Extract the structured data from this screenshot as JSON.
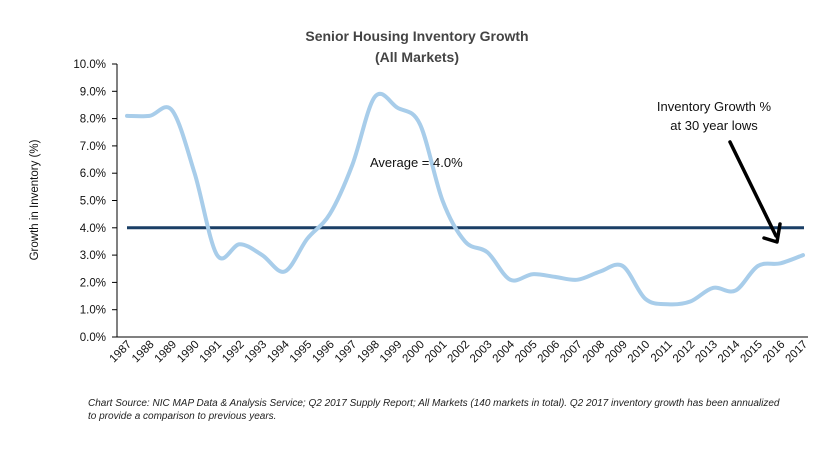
{
  "chart_data": {
    "type": "line",
    "title": "Senior Housing Inventory Growth",
    "subtitle": "(All Markets)",
    "ylabel": "Growth in Inventory (%)",
    "xlabel": "",
    "ylim": [
      0,
      10
    ],
    "y_ticks": [
      "0.0%",
      "1.0%",
      "2.0%",
      "3.0%",
      "4.0%",
      "5.0%",
      "6.0%",
      "7.0%",
      "8.0%",
      "9.0%",
      "10.0%"
    ],
    "categories": [
      "1987",
      "1988",
      "1989",
      "1990",
      "1991",
      "1992",
      "1993",
      "1994",
      "1995",
      "1996",
      "1997",
      "1998",
      "1999",
      "2000",
      "2001",
      "2002",
      "2003",
      "2004",
      "2005",
      "2006",
      "2007",
      "2008",
      "2009",
      "2010",
      "2011",
      "2012",
      "2013",
      "2014",
      "2015",
      "2016",
      "2017"
    ],
    "series": [
      {
        "values": [
          8.1,
          8.1,
          8.3,
          6.0,
          3.0,
          3.4,
          3.0,
          2.4,
          3.6,
          4.5,
          6.3,
          8.8,
          8.4,
          7.8,
          5.0,
          3.5,
          3.1,
          2.1,
          2.3,
          2.2,
          2.1,
          2.4,
          2.6,
          1.4,
          1.2,
          1.3,
          1.8,
          1.7,
          2.6,
          2.7,
          3.0
        ],
        "color": "#a8cdea"
      }
    ],
    "average": {
      "value": 4.0,
      "label": "Average = 4.0%",
      "color": "#1a3f66"
    },
    "annotation": {
      "line1": "Inventory Growth %",
      "line2": "at 30 year lows"
    },
    "grid": false,
    "legend": "none"
  },
  "source_note": "Chart Source: NIC MAP Data & Analysis Service; Q2 2017 Supply Report; All Markets (140 markets in total). Q2 2017 inventory growth has been annualized to provide a comparison to previous years."
}
